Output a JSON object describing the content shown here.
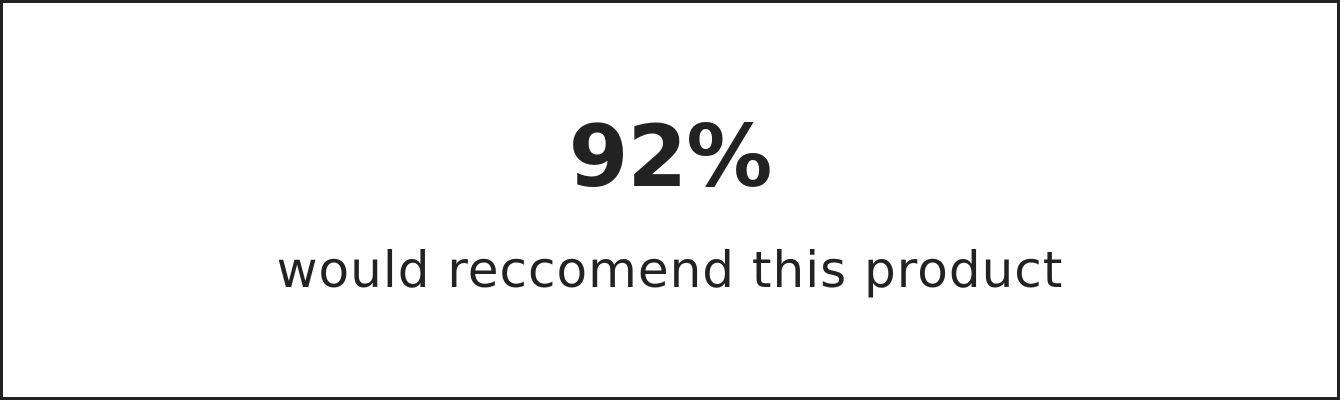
{
  "recommendation": {
    "percentage": "92%",
    "caption": "would reccomend this product"
  },
  "colors": {
    "text": "#222222",
    "border": "#222222",
    "background": "#ffffff"
  }
}
